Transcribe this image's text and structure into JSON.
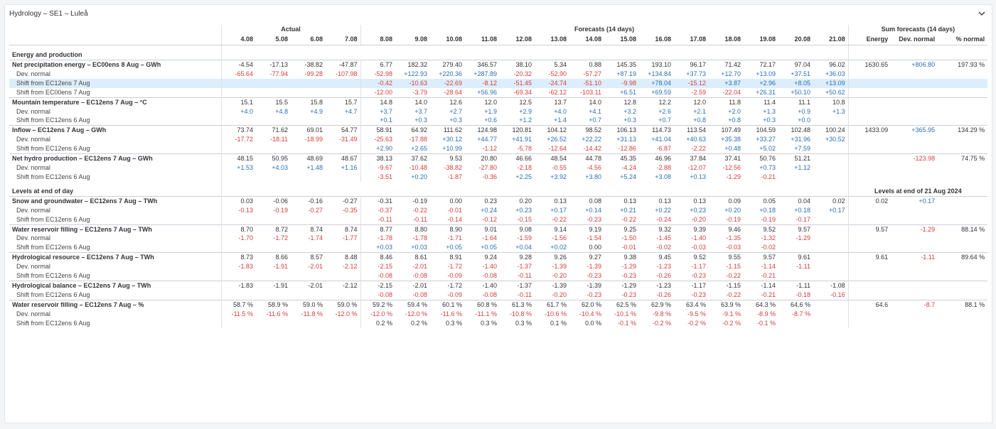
{
  "panel": {
    "title": "Hydrology – SE1 – Luleå"
  },
  "header": {
    "groups": {
      "actual": "Actual",
      "forecast": "Forecasts (14 days)",
      "sum": "Sum forecasts (14 days)"
    },
    "dates": [
      "4.08",
      "5.08",
      "6.08",
      "7.08",
      "8.08",
      "9.08",
      "10.08",
      "11.08",
      "12.08",
      "13.08",
      "14.08",
      "15.08",
      "16.08",
      "17.08",
      "18.08",
      "19.08",
      "20.08",
      "21.08"
    ],
    "sum_cols": [
      "Energy",
      "Dev. normal",
      "% normal"
    ]
  },
  "sections": [
    {
      "title": "Energy and production",
      "right_title": "",
      "rows": [
        {
          "type": "main",
          "label": "Net precipitation energy – EC00ens 8 Aug – GWh",
          "values": [
            "-4.54",
            "-17.13",
            "-38.82",
            "-47.87",
            "6.77",
            "182.32",
            "279.40",
            "346.57",
            "38.10",
            "5.34",
            "0.88",
            "145.35",
            "193.10",
            "96.17",
            "71.42",
            "72.17",
            "97.04",
            "96.02"
          ],
          "sum": [
            "1630.65",
            "+806.80",
            "197.93 %"
          ]
        },
        {
          "type": "sub",
          "label": "Dev. normal",
          "values": [
            "-65.64",
            "-77.94",
            "-99.28",
            "-107.98",
            "-52.98",
            "+122.93",
            "+220.36",
            "+287.89",
            "-20.32",
            "-52.90",
            "-57.27",
            "+87.19",
            "+134.84",
            "+37.73",
            "+12.70",
            "+13.09",
            "+37.51",
            "+36.03"
          ],
          "sum": [
            "",
            "",
            ""
          ]
        },
        {
          "type": "sub",
          "hl": true,
          "label": "Shift from EC12ens 7 Aug",
          "values": [
            "",
            "",
            "",
            "",
            "-0.42",
            "-10.63",
            "-22.69",
            "-8.12",
            "-51.45",
            "-24.74",
            "-51.10",
            "-9.98",
            "+78.04",
            "-15.12",
            "+3.87",
            "+2.96",
            "+8.05",
            "+13.09"
          ],
          "sum": [
            "",
            "",
            ""
          ]
        },
        {
          "type": "sub",
          "label": "Shift from EC00ens 7 Aug",
          "values": [
            "",
            "",
            "",
            "",
            "-12.00",
            "-3.79",
            "-28.64",
            "+56.96",
            "-69.34",
            "-62.12",
            "-103.11",
            "+6.51",
            "+69.59",
            "-2.59",
            "-22.04",
            "+26.31",
            "+50.10",
            "+50.62"
          ],
          "sum": [
            "",
            "",
            ""
          ]
        },
        {
          "type": "main",
          "label": "Mountain temperature – EC12ens 7 Aug – °C",
          "values": [
            "15.1",
            "15.5",
            "15.8",
            "15.7",
            "14.8",
            "14.0",
            "12.6",
            "12.0",
            "12.5",
            "13.7",
            "14.0",
            "12.8",
            "12.2",
            "12.0",
            "11.8",
            "11.4",
            "11.1",
            "10.8"
          ],
          "sum": [
            "",
            "",
            ""
          ]
        },
        {
          "type": "sub",
          "label": "Dev. normal",
          "values": [
            "+4.0",
            "+4.8",
            "+4.9",
            "+4.7",
            "+3.7",
            "+3.7",
            "+2.7",
            "+1.9",
            "+2.9",
            "+4.0",
            "+4.1",
            "+3.2",
            "+2.6",
            "+2.1",
            "+2.0",
            "+1.3",
            "+0.9",
            "+1.3"
          ],
          "sum": [
            "",
            "",
            ""
          ]
        },
        {
          "type": "sub",
          "label": "Shift from EC12ens 6 Aug",
          "values": [
            "",
            "",
            "",
            "",
            "+0.1",
            "+0.3",
            "+0.3",
            "+0.6",
            "+1.2",
            "+1.4",
            "+0.7",
            "+0.3",
            "+0.7",
            "+0.8",
            "+0.8",
            "+0.3",
            "+0.0",
            ""
          ],
          "sum": [
            "",
            "",
            ""
          ]
        },
        {
          "type": "main",
          "label": "Inflow – EC12ens 7 Aug – GWh",
          "values": [
            "73.74",
            "71.62",
            "69.01",
            "54.77",
            "58.91",
            "64.92",
            "111.62",
            "124.98",
            "120.81",
            "104.12",
            "98.52",
            "106.13",
            "114.73",
            "113.54",
            "107.49",
            "104.59",
            "102.48",
            "100.24"
          ],
          "sum": [
            "1433.09",
            "+365.95",
            "134.29 %"
          ]
        },
        {
          "type": "sub",
          "label": "Dev. normal",
          "values": [
            "-17.72",
            "-18.11",
            "-18.99",
            "-31.49",
            "-25.63",
            "-17.88",
            "+30.12",
            "+44.77",
            "+41.91",
            "+26.52",
            "+22.22",
            "+31.13",
            "+41.04",
            "+40.63",
            "+35.38",
            "+33.27",
            "+31.96",
            "+30.52"
          ],
          "sum": [
            "",
            "",
            ""
          ]
        },
        {
          "type": "sub",
          "label": "Shift from EC12ens 6 Aug",
          "values": [
            "",
            "",
            "",
            "",
            "+2.90",
            "+2.65",
            "+10.99",
            "-1.12",
            "-5.78",
            "-12.64",
            "-14.42",
            "-12.86",
            "-6.87",
            "-2.22",
            "+0.48",
            "+5.02",
            "+7.59",
            ""
          ],
          "sum": [
            "",
            "",
            ""
          ]
        },
        {
          "type": "main",
          "label": "Net hydro production – EC12ens 7 Aug – GWh",
          "values": [
            "48.15",
            "50.95",
            "48.69",
            "48.67",
            "38.13",
            "37.62",
            "9.53",
            "20.80",
            "46.66",
            "48.54",
            "44.78",
            "45.35",
            "46.96",
            "37.84",
            "37.41",
            "50.76",
            "51.21",
            ""
          ],
          "sum": [
            "",
            "-123.98",
            "74.75 %"
          ]
        },
        {
          "type": "sub",
          "label": "Dev. normal",
          "values": [
            "+1.53",
            "+4.03",
            "+1.48",
            "+1.16",
            "-9.67",
            "-10.48",
            "-38.82",
            "-27.80",
            "-2.18",
            "-0.55",
            "-4.56",
            "-4.24",
            "-2.88",
            "-12.07",
            "-12.56",
            "+0.73",
            "+1.12",
            ""
          ],
          "sum": [
            "",
            "",
            ""
          ]
        },
        {
          "type": "sub",
          "label": "Shift from EC12ens 6 Aug",
          "values": [
            "",
            "",
            "",
            "",
            "-3.51",
            "+0.20",
            "-1.87",
            "-0.36",
            "+2.25",
            "+3.92",
            "+3.80",
            "+5.24",
            "+3.08",
            "+0.13",
            "-1.29",
            "-0.21",
            "",
            ""
          ],
          "sum": [
            "",
            "",
            ""
          ]
        }
      ]
    },
    {
      "title": "Levels at end of day",
      "right_title": "Levels at end of 21 Aug 2024",
      "rows": [
        {
          "type": "main",
          "label": "Snow and groundwater – EC12ens 7 Aug – TWh",
          "values": [
            "0.03",
            "-0.06",
            "-0.16",
            "-0.27",
            "-0.31",
            "-0.19",
            "0.00",
            "0.23",
            "0.20",
            "0.13",
            "0.08",
            "0.13",
            "0.13",
            "0.13",
            "0.09",
            "0.05",
            "0.04",
            "0.02"
          ],
          "sum": [
            "0.02",
            "+0.17",
            ""
          ]
        },
        {
          "type": "sub",
          "label": "Dev. normal",
          "values": [
            "-0.13",
            "-0.19",
            "-0.27",
            "-0.35",
            "-0.37",
            "-0.22",
            "-0.01",
            "+0.24",
            "+0.23",
            "+0.17",
            "+0.14",
            "+0.21",
            "+0.22",
            "+0.23",
            "+0.20",
            "+0.18",
            "+0.18",
            "+0.17"
          ],
          "sum": [
            "",
            "",
            ""
          ]
        },
        {
          "type": "sub",
          "label": "Shift from EC12ens 6 Aug",
          "values": [
            "",
            "",
            "",
            "",
            "-0.11",
            "-0.11",
            "-0.14",
            "-0.12",
            "-0.15",
            "-0.22",
            "-0.23",
            "-0.22",
            "-0.24",
            "-0.20",
            "-0.19",
            "-0.19",
            "-0.17",
            ""
          ],
          "sum": [
            "",
            "",
            ""
          ]
        },
        {
          "type": "main",
          "label": "Water reservoir filling – EC12ens 7 Aug – TWh",
          "values": [
            "8.70",
            "8.72",
            "8.74",
            "8.74",
            "8.77",
            "8.80",
            "8.90",
            "9.01",
            "9.08",
            "9.14",
            "9.19",
            "9.25",
            "9.32",
            "9.39",
            "9.46",
            "9.52",
            "9.57",
            ""
          ],
          "sum": [
            "9.57",
            "-1.29",
            "88.14 %"
          ]
        },
        {
          "type": "sub",
          "label": "Dev. normal",
          "values": [
            "-1.70",
            "-1.72",
            "-1.74",
            "-1.77",
            "-1.78",
            "-1.78",
            "-1.71",
            "-1.64",
            "-1.59",
            "-1.56",
            "-1.54",
            "-1.50",
            "-1.45",
            "-1.40",
            "-1.35",
            "-1.32",
            "-1.29",
            ""
          ],
          "sum": [
            "",
            "",
            ""
          ]
        },
        {
          "type": "sub",
          "label": "Shift from EC12ens 6 Aug",
          "values": [
            "",
            "",
            "",
            "",
            "+0.03",
            "+0.03",
            "+0.05",
            "+0.05",
            "+0.04",
            "+0.02",
            "0.00",
            "-0.01",
            "-0.02",
            "-0.03",
            "-0.03",
            "-0.02",
            "",
            ""
          ],
          "sum": [
            "",
            "",
            ""
          ]
        },
        {
          "type": "main",
          "label": "Hydrological resource – EC12ens 7 Aug – TWh",
          "values": [
            "8.73",
            "8.66",
            "8.57",
            "8.48",
            "8.46",
            "8.61",
            "8.91",
            "9.24",
            "9.28",
            "9.26",
            "9.27",
            "9.38",
            "9.45",
            "9.52",
            "9.55",
            "9.57",
            "9.61",
            ""
          ],
          "sum": [
            "9.61",
            "-1.11",
            "89.64 %"
          ]
        },
        {
          "type": "sub",
          "label": "Dev. normal",
          "values": [
            "-1.83",
            "-1.91",
            "-2.01",
            "-2.12",
            "-2.15",
            "-2.01",
            "-1.72",
            "-1.40",
            "-1.37",
            "-1.39",
            "-1.39",
            "-1.29",
            "-1.23",
            "-1.17",
            "-1.15",
            "-1.14",
            "-1.11",
            ""
          ],
          "sum": [
            "",
            "",
            ""
          ]
        },
        {
          "type": "sub",
          "label": "Shift from EC12ens 6 Aug",
          "values": [
            "",
            "",
            "",
            "",
            "-0.08",
            "-0.08",
            "-0.09",
            "-0.08",
            "-0.11",
            "-0.20",
            "-0.23",
            "-0.23",
            "-0.26",
            "-0.23",
            "-0.22",
            "-0.21",
            "",
            ""
          ],
          "sum": [
            "",
            "",
            ""
          ]
        },
        {
          "type": "main",
          "label": "Hydrological balance – EC12ens 7 Aug – TWh",
          "values": [
            "-1.83",
            "-1.91",
            "-2.01",
            "-2.12",
            "-2.15",
            "-2.01",
            "-1.72",
            "-1.40",
            "-1.37",
            "-1.39",
            "-1.39",
            "-1.29",
            "-1.23",
            "-1.17",
            "-1.15",
            "-1.14",
            "-1.11",
            "-1.08"
          ],
          "sum": [
            "",
            "",
            ""
          ]
        },
        {
          "type": "sub",
          "label": "Shift from EC12ens 6 Aug",
          "values": [
            "",
            "",
            "",
            "",
            "-0.08",
            "-0.08",
            "-0.09",
            "-0.08",
            "-0.11",
            "-0.20",
            "-0.23",
            "-0.23",
            "-0.26",
            "-0.23",
            "-0.22",
            "-0.21",
            "-0.18",
            "-0.16"
          ],
          "sum": [
            "",
            "",
            ""
          ]
        },
        {
          "type": "main",
          "label": "Water reservoir filling – EC12ens 7 Aug – %",
          "values": [
            "58.7 %",
            "58.9 %",
            "59.0 %",
            "59.0 %",
            "59.2 %",
            "59.4 %",
            "60.1 %",
            "60.8 %",
            "61.3 %",
            "61.7 %",
            "62.0 %",
            "62.5 %",
            "62.9 %",
            "63.4 %",
            "63.9 %",
            "64.3 %",
            "64.6 %",
            ""
          ],
          "sum": [
            "64.6",
            "-8.7",
            "88.1 %"
          ]
        },
        {
          "type": "sub",
          "label": "Dev. normal",
          "values": [
            "-11.5 %",
            "-11.6 %",
            "-11.8 %",
            "-12.0 %",
            "-12.0 %",
            "-12.0 %",
            "-11.6 %",
            "-11.1 %",
            "-10.8 %",
            "-10.6 %",
            "-10.4 %",
            "-10.1 %",
            "-9.8 %",
            "-9.5 %",
            "-9.1 %",
            "-8.9 %",
            "-8.7 %",
            ""
          ],
          "sum": [
            "",
            "",
            ""
          ]
        },
        {
          "type": "sub",
          "label": "Shift from EC12ens 6 Aug",
          "values": [
            "",
            "",
            "",
            "",
            "0.2 %",
            "0.2 %",
            "0.3 %",
            "0.3 %",
            "0.3 %",
            "0.1 %",
            "0.0 %",
            "-0.1 %",
            "-0.2 %",
            "-0.2 %",
            "-0.2 %",
            "-0.1 %",
            "",
            ""
          ],
          "sum": [
            "",
            "",
            ""
          ]
        }
      ]
    }
  ],
  "colors": {
    "negative": "#d63d3d",
    "positive": "#2a6fb3",
    "highlight": "#dceefb"
  }
}
